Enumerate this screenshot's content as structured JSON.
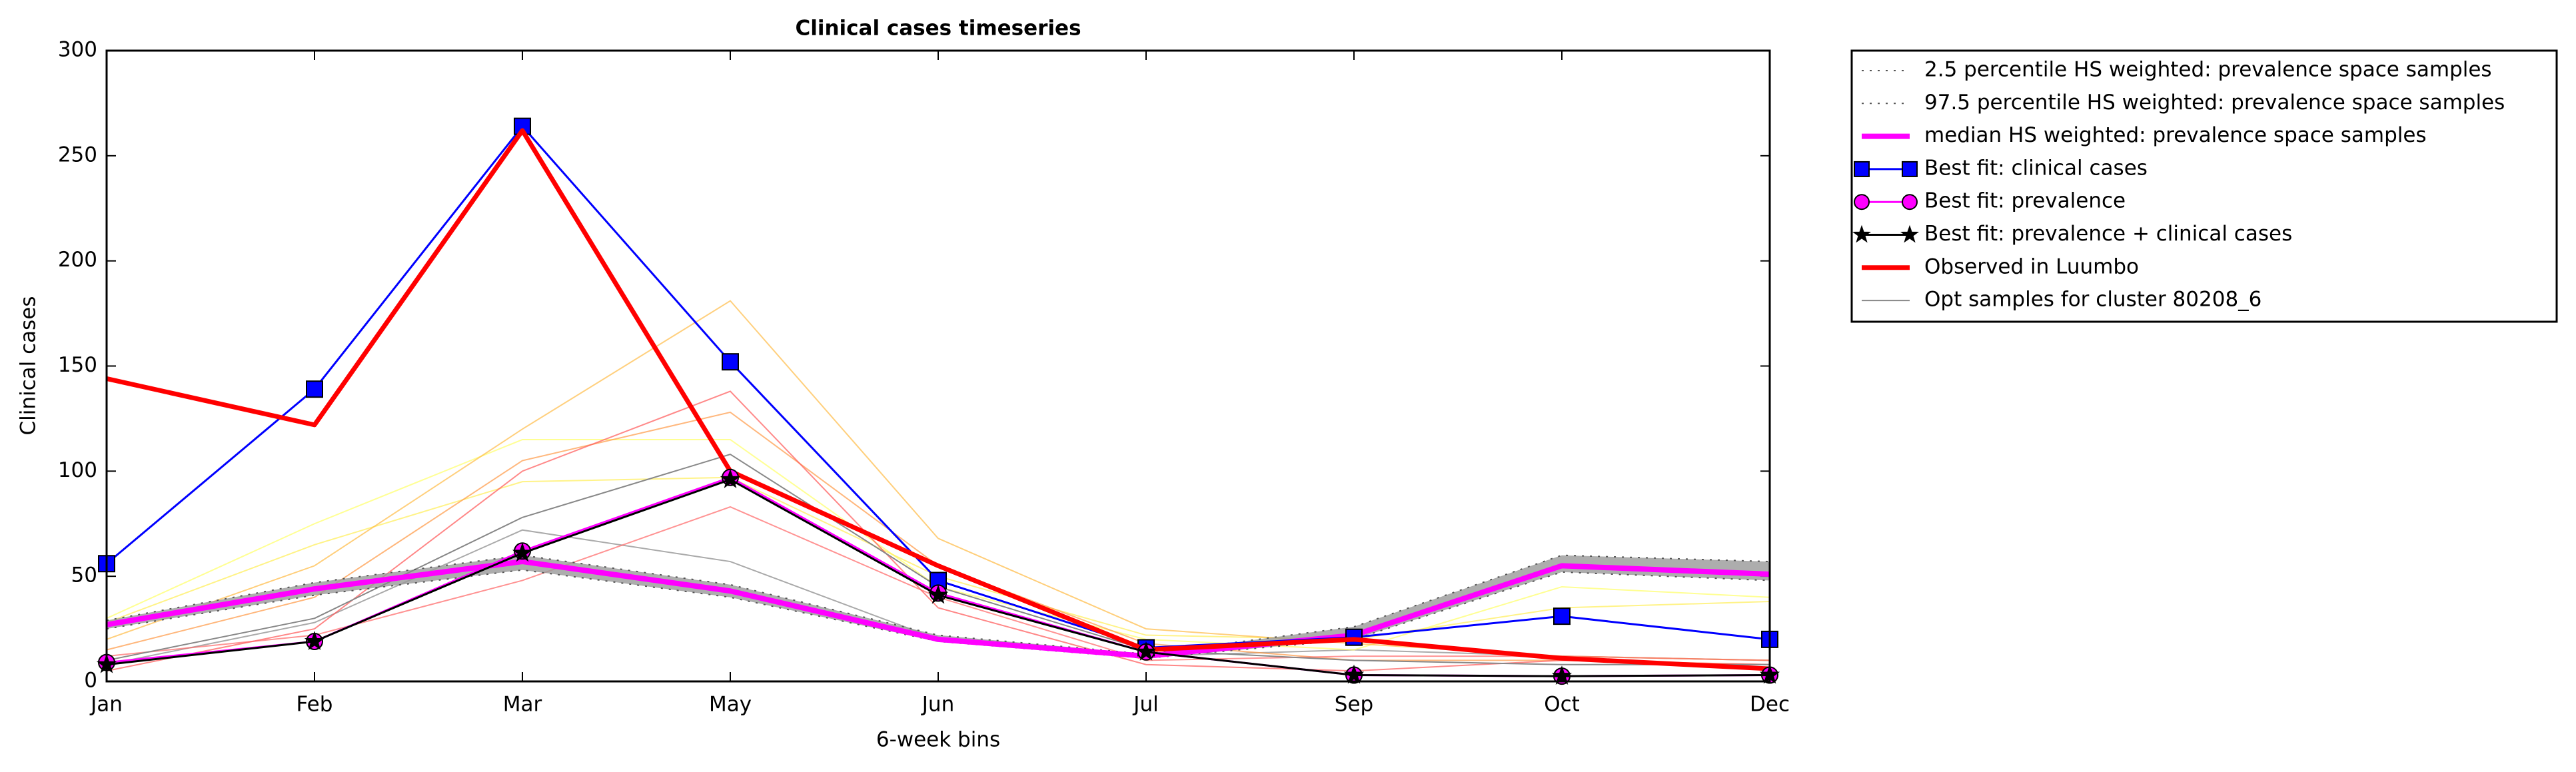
{
  "chart_data": {
    "type": "line",
    "title": "Clinical cases timeseries",
    "x_label": "6-week bins",
    "y_label": "Clinical cases",
    "categories": [
      "Jan",
      "Feb",
      "Mar",
      "May",
      "Jun",
      "Jul",
      "Sep",
      "Oct",
      "Dec"
    ],
    "ylim": [
      0,
      300
    ],
    "yticks": [
      0,
      50,
      100,
      150,
      200,
      250,
      300
    ],
    "legend": "outside-right",
    "band": {
      "color": "#999999",
      "lower": 0,
      "upper": 1
    },
    "series": [
      {
        "name": "2.5 percentile HS weighted: prevalence space samples",
        "color": "#555555",
        "linestyle": "dotted",
        "width": 2,
        "values": [
          25,
          41,
          53,
          40,
          19,
          11,
          20,
          52,
          48
        ]
      },
      {
        "name": "97.5 percentile HS weighted: prevalence space samples",
        "color": "#555555",
        "linestyle": "dotted",
        "width": 2,
        "values": [
          29,
          47,
          60,
          46,
          22,
          13,
          26,
          60,
          57
        ]
      },
      {
        "name": "median HS weighted: prevalence space samples",
        "color": "#ff00ff",
        "linestyle": "solid",
        "width": 8,
        "values": [
          27,
          44,
          57,
          43,
          20,
          12,
          22,
          55,
          51
        ]
      },
      {
        "name": "Best fit: clinical cases",
        "color": "#0000ff",
        "linestyle": "solid",
        "width": 3,
        "marker": "square",
        "values": [
          56,
          139,
          264,
          152,
          48,
          16,
          21,
          31,
          20
        ]
      },
      {
        "name": "Best fit: prevalence",
        "color": "#ff00ff",
        "linestyle": "solid",
        "width": 3,
        "marker": "circle",
        "values": [
          9,
          19,
          62,
          97,
          42,
          14,
          3,
          2.5,
          3
        ]
      },
      {
        "name": "Best fit: prevalence + clinical cases",
        "color": "#000000",
        "linestyle": "solid",
        "width": 3,
        "marker": "star",
        "values": [
          8,
          19,
          61,
          96,
          41,
          14,
          3,
          2.5,
          3
        ]
      },
      {
        "name": "Observed in Luumbo",
        "color": "#ff0000",
        "linestyle": "solid",
        "width": 7,
        "values": [
          144,
          122,
          262,
          100,
          55,
          15,
          20,
          11,
          6
        ]
      },
      {
        "name": "Opt samples for cluster 80208_6",
        "color": "#888888",
        "linestyle": "solid",
        "width": 2,
        "values": [
          10,
          30,
          78,
          108,
          45,
          15,
          10,
          8,
          8
        ]
      }
    ],
    "sample_lines": [
      {
        "color": "#888888",
        "values": [
          8,
          28,
          72,
          57,
          20,
          12,
          15,
          12,
          10
        ]
      },
      {
        "color": "#ffff66",
        "values": [
          30,
          75,
          115,
          115,
          45,
          20,
          15,
          45,
          40
        ]
      },
      {
        "color": "#ffee55",
        "values": [
          28,
          65,
          95,
          97,
          50,
          22,
          20,
          35,
          38
        ]
      },
      {
        "color": "#ffbb44",
        "values": [
          20,
          55,
          120,
          181,
          68,
          25,
          18,
          12,
          10
        ]
      },
      {
        "color": "#ff9944",
        "values": [
          15,
          40,
          105,
          128,
          55,
          18,
          10,
          10,
          8
        ]
      },
      {
        "color": "#ff5555",
        "values": [
          5,
          25,
          100,
          138,
          35,
          8,
          5,
          10,
          8
        ]
      },
      {
        "color": "#ff6666",
        "values": [
          12,
          22,
          48,
          83,
          40,
          10,
          12,
          12,
          10
        ]
      }
    ]
  }
}
